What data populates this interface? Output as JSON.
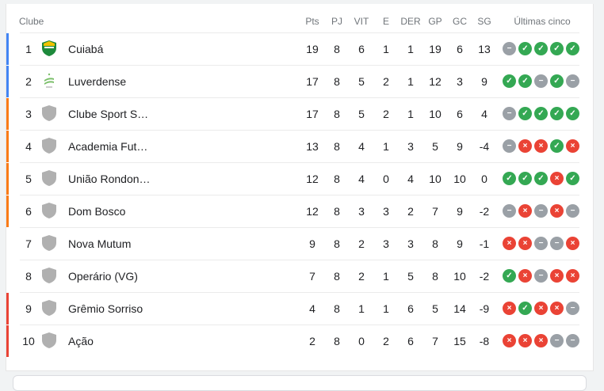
{
  "headers": {
    "club": "Clube",
    "pts": "Pts",
    "pj": "PJ",
    "vit": "VIT",
    "e": "E",
    "der": "DER",
    "gp": "GP",
    "gc": "GC",
    "sg": "SG",
    "form": "Últimas cinco"
  },
  "colors": {
    "promotion": "#4285f4",
    "playoff": "#fa7b17",
    "relegation": "#ea4335",
    "win": "#34a853",
    "draw": "#9aa0a6",
    "loss": "#ea4335"
  },
  "rows": [
    {
      "pos": "1",
      "club": "Cuiabá",
      "crest": "cuiaba-crest",
      "zone": "promotion",
      "pts": "19",
      "pj": "8",
      "vit": "6",
      "e": "1",
      "der": "1",
      "gp": "19",
      "gc": "6",
      "sg": "13",
      "form": [
        "D",
        "W",
        "W",
        "W",
        "W"
      ]
    },
    {
      "pos": "2",
      "club": "Luverdense",
      "crest": "luverdense-crest",
      "zone": "promotion",
      "pts": "17",
      "pj": "8",
      "vit": "5",
      "e": "2",
      "der": "1",
      "gp": "12",
      "gc": "3",
      "sg": "9",
      "form": [
        "W",
        "W",
        "D",
        "W",
        "D"
      ]
    },
    {
      "pos": "3",
      "club": "Clube Sport S…",
      "crest": "default-shield",
      "zone": "playoff",
      "pts": "17",
      "pj": "8",
      "vit": "5",
      "e": "2",
      "der": "1",
      "gp": "10",
      "gc": "6",
      "sg": "4",
      "form": [
        "D",
        "W",
        "W",
        "W",
        "W"
      ]
    },
    {
      "pos": "4",
      "club": "Academia Fut…",
      "crest": "default-shield",
      "zone": "playoff",
      "pts": "13",
      "pj": "8",
      "vit": "4",
      "e": "1",
      "der": "3",
      "gp": "5",
      "gc": "9",
      "sg": "-4",
      "form": [
        "D",
        "L",
        "L",
        "W",
        "L"
      ]
    },
    {
      "pos": "5",
      "club": "União Rondon…",
      "crest": "default-shield",
      "zone": "playoff",
      "pts": "12",
      "pj": "8",
      "vit": "4",
      "e": "0",
      "der": "4",
      "gp": "10",
      "gc": "10",
      "sg": "0",
      "form": [
        "W",
        "W",
        "W",
        "L",
        "W"
      ]
    },
    {
      "pos": "6",
      "club": "Dom Bosco",
      "crest": "default-shield",
      "zone": "playoff",
      "pts": "12",
      "pj": "8",
      "vit": "3",
      "e": "3",
      "der": "2",
      "gp": "7",
      "gc": "9",
      "sg": "-2",
      "form": [
        "D",
        "L",
        "D",
        "L",
        "D"
      ]
    },
    {
      "pos": "7",
      "club": "Nova Mutum",
      "crest": "default-shield",
      "zone": "none",
      "pts": "9",
      "pj": "8",
      "vit": "2",
      "e": "3",
      "der": "3",
      "gp": "8",
      "gc": "9",
      "sg": "-1",
      "form": [
        "L",
        "L",
        "D",
        "D",
        "L"
      ]
    },
    {
      "pos": "8",
      "club": "Operário (VG)",
      "crest": "default-shield",
      "zone": "none",
      "pts": "7",
      "pj": "8",
      "vit": "2",
      "e": "1",
      "der": "5",
      "gp": "8",
      "gc": "10",
      "sg": "-2",
      "form": [
        "W",
        "L",
        "D",
        "L",
        "L"
      ]
    },
    {
      "pos": "9",
      "club": "Grêmio Sorriso",
      "crest": "default-shield",
      "zone": "relegation",
      "pts": "4",
      "pj": "8",
      "vit": "1",
      "e": "1",
      "der": "6",
      "gp": "5",
      "gc": "14",
      "sg": "-9",
      "form": [
        "L",
        "W",
        "L",
        "L",
        "D"
      ]
    },
    {
      "pos": "10",
      "club": "Ação",
      "crest": "default-shield",
      "zone": "relegation",
      "pts": "2",
      "pj": "8",
      "vit": "0",
      "e": "2",
      "der": "6",
      "gp": "7",
      "gc": "15",
      "sg": "-8",
      "form": [
        "L",
        "L",
        "L",
        "D",
        "D"
      ]
    }
  ]
}
